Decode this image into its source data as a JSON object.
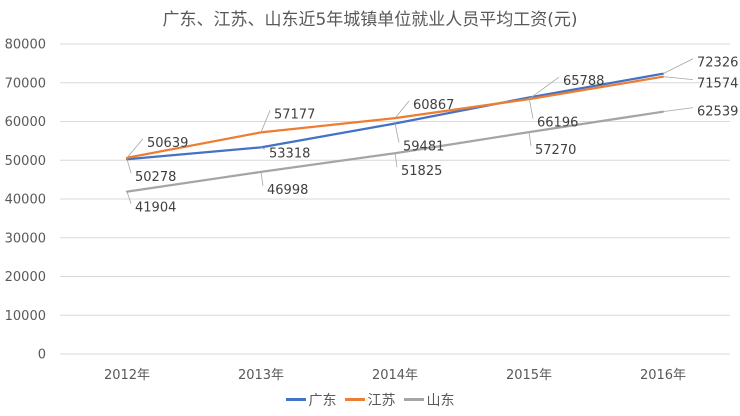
{
  "chart_data": {
    "type": "line",
    "title": "广东、江苏、山东近5年城镇单位就业人员平均工资(元)",
    "categories": [
      "2012年",
      "2013年",
      "2014年",
      "2015年",
      "2016年"
    ],
    "ylim": [
      0,
      80000
    ],
    "yticks": [
      0,
      10000,
      20000,
      30000,
      40000,
      50000,
      60000,
      70000,
      80000
    ],
    "grid": true,
    "legend_position": "bottom",
    "series": [
      {
        "name": "广东",
        "color": "#4472c4",
        "values": [
          50278,
          53318,
          59481,
          66196,
          72326
        ]
      },
      {
        "name": "江苏",
        "color": "#ed7d31",
        "values": [
          50639,
          57177,
          60867,
          65788,
          71574
        ]
      },
      {
        "name": "山东",
        "color": "#a5a5a5",
        "values": [
          41904,
          46998,
          51825,
          57270,
          62539
        ]
      }
    ]
  }
}
